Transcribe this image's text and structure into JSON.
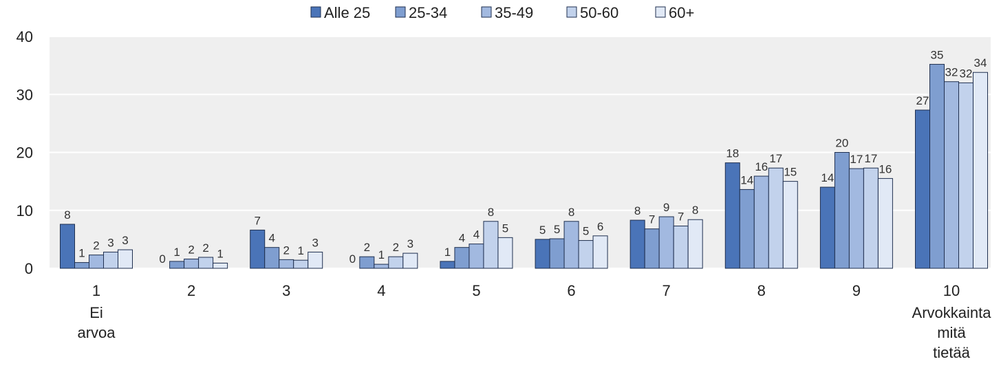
{
  "chart_data": {
    "type": "bar",
    "categories": [
      "1",
      "2",
      "3",
      "4",
      "5",
      "6",
      "7",
      "8",
      "9",
      "10"
    ],
    "category_sublabels": [
      [
        "Ei",
        "arvoa"
      ],
      [],
      [],
      [],
      [],
      [],
      [],
      [],
      [],
      [
        "Arvokkainta",
        "mitä",
        "tietää"
      ]
    ],
    "series": [
      {
        "name": "Alle 25",
        "color": "#4a74b8",
        "values": [
          7.6,
          0,
          6.6,
          0,
          1.2,
          5.0,
          8.3,
          18.2,
          14.0,
          27.3
        ],
        "labels": [
          "8",
          "0",
          "7",
          "0",
          "1",
          "5",
          "8",
          "18",
          "14",
          "27"
        ]
      },
      {
        "name": "25-34",
        "color": "#7f9ed0",
        "values": [
          1.0,
          1.2,
          3.6,
          2.0,
          3.6,
          5.1,
          6.8,
          13.6,
          20.0,
          35.2
        ],
        "labels": [
          "1",
          "1",
          "4",
          "2",
          "4",
          "5",
          "7",
          "14",
          "20",
          "35"
        ]
      },
      {
        "name": "35-49",
        "color": "#a2b9e0",
        "values": [
          2.3,
          1.6,
          1.5,
          0.7,
          4.2,
          8.1,
          8.9,
          15.9,
          17.2,
          32.2
        ],
        "labels": [
          "2",
          "2",
          "2",
          "1",
          "4",
          "8",
          "9",
          "16",
          "17",
          "32"
        ]
      },
      {
        "name": "50-60",
        "color": "#c2d2ec",
        "values": [
          2.8,
          1.9,
          1.4,
          2.0,
          8.1,
          4.8,
          7.3,
          17.3,
          17.3,
          32.0
        ],
        "labels": [
          "3",
          "2",
          "1",
          "2",
          "8",
          "5",
          "7",
          "17",
          "17",
          "32"
        ]
      },
      {
        "name": "60+",
        "color": "#e1e9f6",
        "values": [
          3.2,
          0.9,
          2.8,
          2.6,
          5.3,
          5.6,
          8.4,
          15.0,
          15.5,
          33.8
        ],
        "labels": [
          "3",
          "1",
          "3",
          "3",
          "5",
          "6",
          "8",
          "15",
          "16",
          "34"
        ]
      }
    ],
    "yticks": [
      "0",
      "10",
      "20",
      "30",
      "40"
    ],
    "ylim": [
      0,
      40
    ],
    "title": "",
    "xlabel": "",
    "ylabel": "",
    "grid": true,
    "legend_position": "top-center",
    "plot_background": "#efefef",
    "gridline_color": "#ffffff",
    "bar_outline_color": "#1f2f4f"
  }
}
